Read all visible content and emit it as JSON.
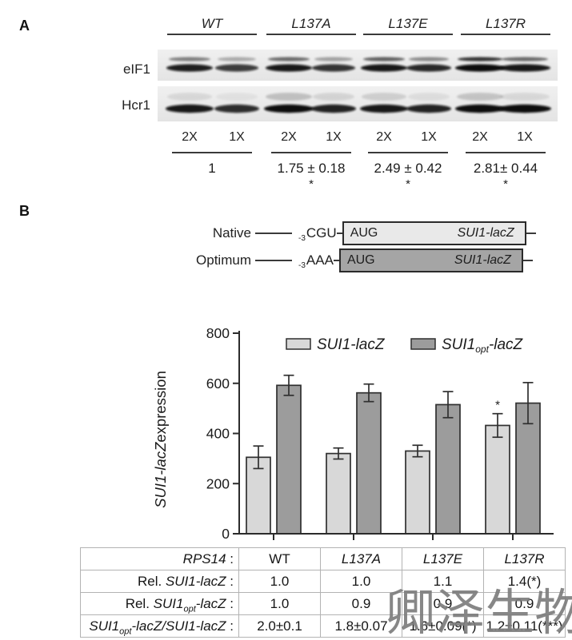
{
  "panel_a": {
    "label": "A",
    "groups": [
      "WT",
      "L137A",
      "L137E",
      "L137R"
    ],
    "blot_rows": [
      "eIF1",
      "Hcr1"
    ],
    "lane_doses": [
      "2X",
      "1X"
    ],
    "quantification": {
      "values": [
        "1",
        "1.75 ± 0.18",
        "2.49 ± 0.42",
        "2.81± 0.44"
      ],
      "significance": [
        "",
        "*",
        "*",
        "*"
      ]
    }
  },
  "panel_b": {
    "label": "B",
    "constructs": [
      {
        "name": "Native",
        "position_sub": "-3",
        "context": "CGU",
        "start_codon": "AUG",
        "reporter": "SUI1-lacZ",
        "fill": "#e9e9e9"
      },
      {
        "name": "Optimum",
        "position_sub": "-3",
        "context": "AAA",
        "start_codon": "AUG",
        "reporter": "SUI1-lacZ",
        "fill": "#a5a5a5"
      }
    ]
  },
  "chart_data": {
    "type": "bar",
    "title": "",
    "ylabel": "SUI1-lacZ expression",
    "ylabel_italic_part": "SUI1-lacZ",
    "ylabel_plain_part": "expression",
    "ylim": [
      0,
      800
    ],
    "yticks": [
      0,
      200,
      400,
      600,
      800
    ],
    "categories": [
      "WT",
      "L137A",
      "L137E",
      "L137R"
    ],
    "series": [
      {
        "name": "SUI1-lacZ",
        "color": "#d8d8d8",
        "values": [
          305,
          320,
          330,
          432
        ],
        "errors": [
          45,
          22,
          23,
          47
        ],
        "significance": [
          "",
          "",
          "",
          "*"
        ]
      },
      {
        "name": "SUI1opt-lacZ",
        "name_main": "SUI1",
        "name_sub": "opt",
        "name_suffix": "-lacZ",
        "color": "#9c9c9c",
        "values": [
          592,
          562,
          515,
          521
        ],
        "errors": [
          40,
          35,
          52,
          82
        ],
        "significance": [
          "",
          "",
          "",
          ""
        ]
      }
    ],
    "legend_position": "top",
    "grid": false
  },
  "table": {
    "rows": [
      {
        "label_parts": [
          {
            "t": "RPS14",
            "s": "i"
          },
          {
            "t": " :",
            "s": ""
          }
        ],
        "cells": [
          "WT",
          "L137A",
          "L137E",
          "L137R"
        ],
        "cells_style": [
          "",
          "i",
          "i",
          "i"
        ]
      },
      {
        "label_parts": [
          {
            "t": "Rel. ",
            "s": ""
          },
          {
            "t": "SUI1-lacZ",
            "s": "i"
          },
          {
            "t": " :",
            "s": ""
          }
        ],
        "cells": [
          "1.0",
          "1.0",
          "1.1",
          "1.4(*)"
        ],
        "cells_style": [
          "",
          "",
          "",
          ""
        ]
      },
      {
        "label_parts": [
          {
            "t": "Rel. ",
            "s": ""
          },
          {
            "t": "SUI1",
            "s": "i"
          },
          {
            "t": "opt",
            "s": "sub"
          },
          {
            "t": "-lacZ",
            "s": "i"
          },
          {
            "t": " :",
            "s": ""
          }
        ],
        "cells": [
          "1.0",
          "0.9",
          "0.9",
          "0.9"
        ],
        "cells_style": [
          "",
          "",
          "",
          ""
        ]
      },
      {
        "label_parts": [
          {
            "t": "SUI1",
            "s": "i"
          },
          {
            "t": "opt",
            "s": "sub"
          },
          {
            "t": "-lacZ/SUI1-lacZ",
            "s": "i"
          },
          {
            "t": " :",
            "s": ""
          }
        ],
        "cells": [
          "2.0±0.1",
          "1.8±0.07",
          "1.6±0.09(*)",
          "1.2±0.11(***)"
        ],
        "cells_style": [
          "",
          "",
          "",
          ""
        ]
      }
    ]
  },
  "watermark": {
    "text": "卿泽生物",
    "color": "#7d7d7d"
  }
}
